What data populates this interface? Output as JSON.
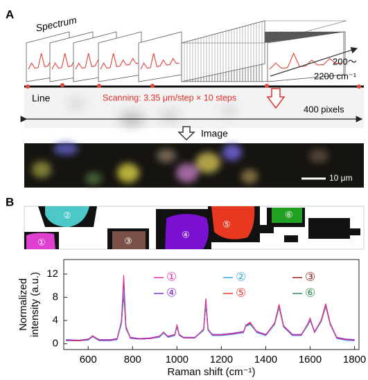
{
  "panel_a": {
    "label": "A",
    "spectrum_label": "Spectrum",
    "range_label_top": "200～",
    "range_label_bottom": "2200 cm⁻¹",
    "line_label": "Line",
    "scanning_label": "Scanning: 3.35 μm/step × 10 steps",
    "pixels_label": "400 pixels",
    "image_label": "Image",
    "scale_bar_label": "10 μm"
  },
  "panel_b": {
    "label": "B",
    "cell_labels": [
      "①",
      "②",
      "③",
      "④",
      "⑤",
      "⑥"
    ]
  },
  "chart_data": {
    "type": "line",
    "xlabel": "Raman shift (cm⁻¹)",
    "ylabel": [
      "Normalized",
      "intensity (a.u.)"
    ],
    "x": [
      500,
      560,
      600,
      620,
      650,
      700,
      730,
      750,
      760,
      770,
      790,
      830,
      880,
      920,
      940,
      960,
      990,
      1000,
      1010,
      1030,
      1080,
      1120,
      1130,
      1140,
      1160,
      1200,
      1250,
      1300,
      1310,
      1330,
      1360,
      1400,
      1440,
      1460,
      1480,
      1520,
      1560,
      1590,
      1600,
      1620,
      1650,
      1670,
      1690,
      1720,
      1760,
      1800
    ],
    "series": [
      {
        "name": "①",
        "color": "#e0309e",
        "values": [
          0.6,
          0.5,
          0.7,
          1.3,
          0.6,
          0.6,
          0.8,
          4.0,
          11.8,
          3.0,
          1.0,
          0.8,
          0.9,
          1.2,
          2.0,
          1.2,
          1.5,
          3.2,
          1.5,
          1.0,
          1.0,
          2.5,
          7.8,
          2.5,
          1.5,
          1.5,
          1.7,
          2.0,
          3.2,
          3.6,
          2.0,
          1.5,
          3.5,
          6.6,
          3.0,
          1.5,
          1.5,
          3.5,
          4.3,
          2.0,
          4.0,
          6.7,
          3.5,
          1.0,
          0.7,
          0.6
        ]
      },
      {
        "name": "②",
        "color": "#3aa8e0",
        "values": [
          0.5,
          0.5,
          0.6,
          1.2,
          0.5,
          0.5,
          0.7,
          3.5,
          9.5,
          2.8,
          0.9,
          0.8,
          0.9,
          1.1,
          1.8,
          1.1,
          1.4,
          3.0,
          1.4,
          1.0,
          1.0,
          2.3,
          7.0,
          2.3,
          1.4,
          1.4,
          1.6,
          1.9,
          3.0,
          3.4,
          1.9,
          1.4,
          3.3,
          6.3,
          2.9,
          1.4,
          1.4,
          3.3,
          4.1,
          1.9,
          3.8,
          6.5,
          3.3,
          0.9,
          0.6,
          0.5
        ]
      },
      {
        "name": "③",
        "color": "#8a2222",
        "values": [
          0.6,
          0.6,
          0.7,
          1.2,
          0.6,
          0.6,
          0.8,
          3.8,
          10.5,
          2.9,
          1.0,
          0.8,
          0.9,
          1.2,
          1.9,
          1.2,
          1.5,
          3.1,
          1.5,
          1.0,
          1.0,
          2.4,
          7.4,
          2.4,
          1.5,
          1.5,
          1.7,
          2.0,
          3.1,
          3.5,
          2.0,
          1.5,
          3.4,
          6.4,
          3.0,
          1.5,
          1.5,
          3.4,
          4.2,
          2.0,
          3.9,
          6.6,
          3.4,
          1.0,
          0.7,
          0.6
        ]
      },
      {
        "name": "④",
        "color": "#7a30d0",
        "values": [
          0.7,
          0.6,
          0.8,
          1.3,
          0.7,
          0.7,
          0.9,
          3.6,
          9.0,
          2.7,
          1.1,
          0.9,
          1.0,
          1.3,
          1.9,
          1.3,
          1.6,
          3.0,
          1.6,
          1.1,
          1.1,
          2.4,
          7.2,
          2.4,
          1.6,
          1.6,
          1.8,
          2.1,
          3.0,
          3.4,
          2.1,
          1.6,
          3.4,
          6.5,
          3.1,
          1.6,
          1.6,
          3.3,
          4.0,
          2.1,
          3.9,
          6.5,
          3.4,
          1.1,
          0.8,
          0.7
        ]
      },
      {
        "name": "⑤",
        "color": "#e83a30",
        "values": [
          0.5,
          0.5,
          0.7,
          1.4,
          0.6,
          0.6,
          0.8,
          3.9,
          11.0,
          3.0,
          1.0,
          0.8,
          0.9,
          1.2,
          2.0,
          1.2,
          1.5,
          3.3,
          1.5,
          1.0,
          1.0,
          2.5,
          7.6,
          2.5,
          1.5,
          1.5,
          1.7,
          2.0,
          3.2,
          3.7,
          2.0,
          1.5,
          3.6,
          6.8,
          3.1,
          1.5,
          1.5,
          3.5,
          4.4,
          2.0,
          4.1,
          6.9,
          3.6,
          1.0,
          0.7,
          0.6
        ]
      },
      {
        "name": "⑥",
        "color": "#2a8a50",
        "values": [
          0.6,
          0.6,
          0.7,
          1.2,
          0.6,
          0.6,
          0.8,
          3.4,
          8.5,
          2.6,
          1.0,
          0.8,
          0.9,
          1.2,
          1.8,
          1.2,
          1.5,
          2.9,
          1.5,
          1.0,
          1.0,
          2.3,
          6.8,
          2.3,
          1.5,
          1.5,
          1.7,
          2.0,
          3.0,
          3.3,
          2.0,
          1.5,
          3.3,
          6.2,
          2.9,
          1.5,
          1.5,
          3.2,
          4.0,
          2.0,
          3.8,
          6.4,
          3.3,
          1.0,
          0.7,
          0.6
        ]
      }
    ],
    "xlim": [
      490,
      1820
    ],
    "xticks": [
      600,
      800,
      1000,
      1200,
      1400,
      1600,
      1800
    ],
    "ylim": [
      -1,
      14.5
    ],
    "yticks": [
      0,
      4,
      8,
      12
    ]
  }
}
